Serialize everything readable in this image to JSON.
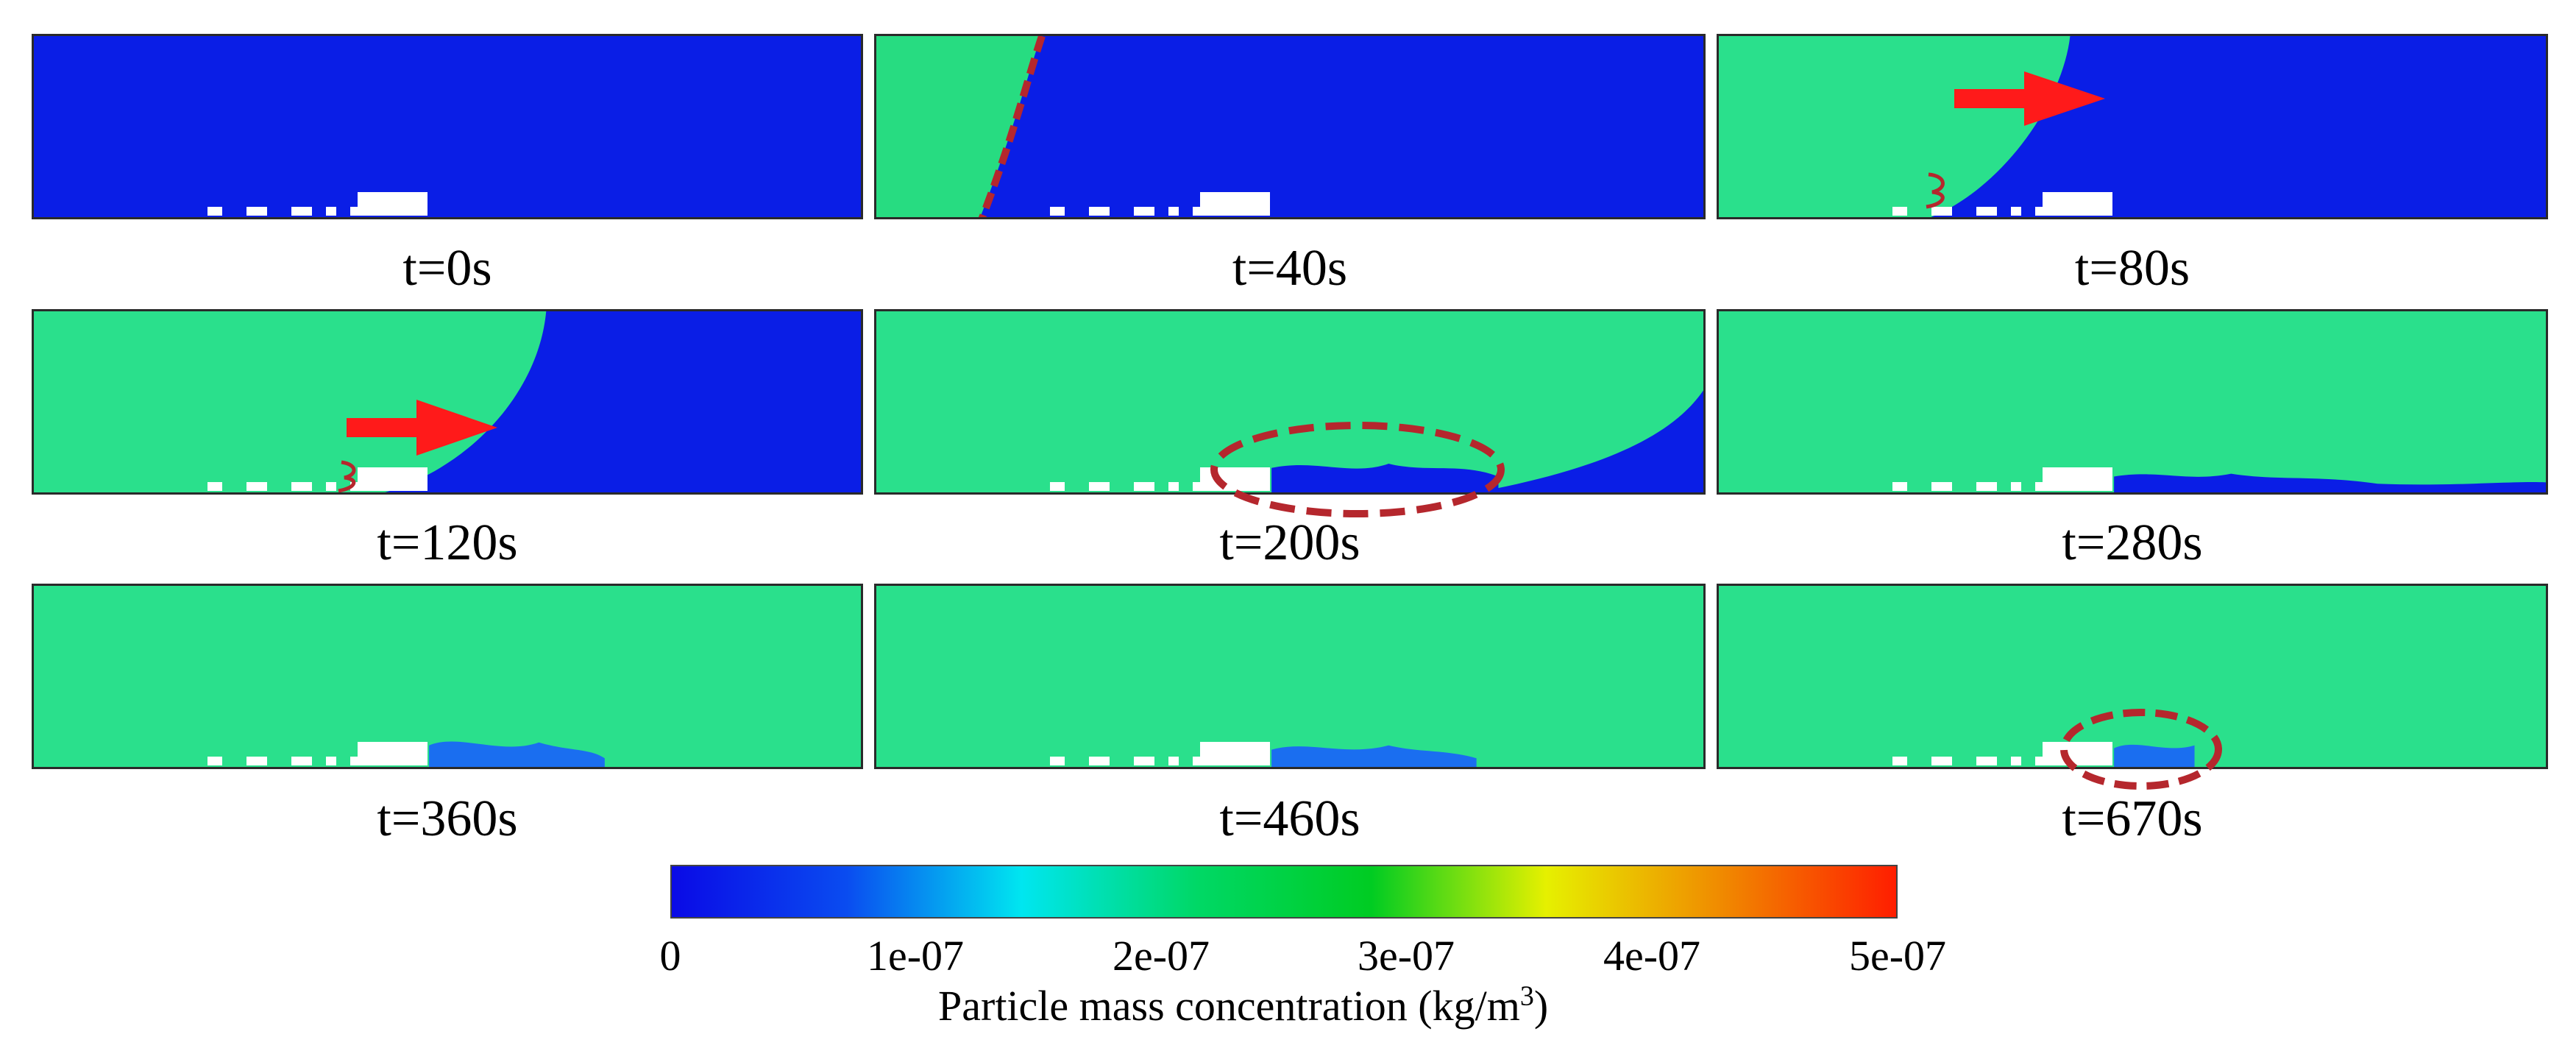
{
  "panels": [
    {
      "time": "t=0s"
    },
    {
      "time": "t=40s"
    },
    {
      "time": "t=80s"
    },
    {
      "time": "t=120s"
    },
    {
      "time": "t=200s"
    },
    {
      "time": "t=280s"
    },
    {
      "time": "t=360s"
    },
    {
      "time": "t=460s"
    },
    {
      "time": "t=670s"
    }
  ],
  "colorbar": {
    "ticks": [
      "0",
      "1e-07",
      "2e-07",
      "3e-07",
      "4e-07",
      "5e-07"
    ],
    "label_main": "Particle mass concentration (kg/m",
    "label_sup": "3",
    "label_end": ")",
    "colors": [
      "#0a0ae6",
      "#0a4cf0",
      "#00e6f0",
      "#00d866",
      "#00cc22",
      "#e6f000",
      "#f08a00",
      "#ff1e00"
    ]
  },
  "colors": {
    "domain_empty": "#0a1ee6",
    "domain_filled": "#2ae08c",
    "annotation_dashed": "#b5272d",
    "arrow": "#ff1a1a"
  }
}
